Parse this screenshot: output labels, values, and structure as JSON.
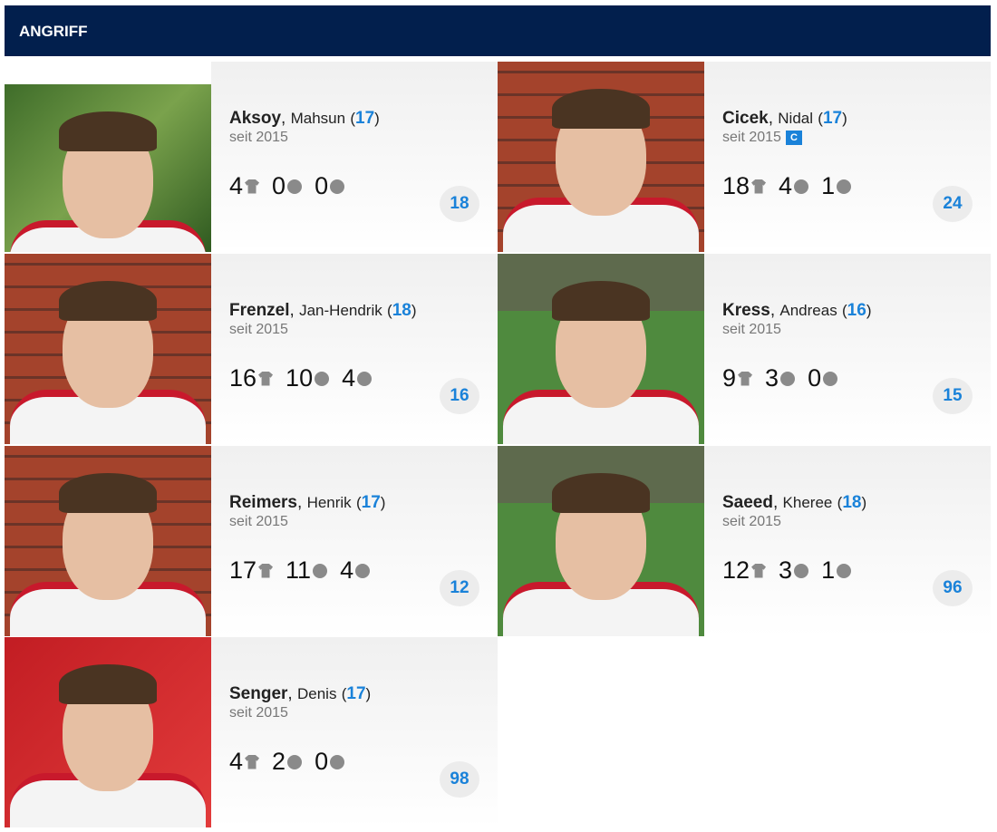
{
  "section": {
    "title": "ANGRIFF"
  },
  "players": [
    {
      "last": "Aksoy",
      "first": "Mahsun",
      "age": "17",
      "since": "seit 2015",
      "captain": "",
      "games": "4",
      "goals": "0",
      "assists": "0",
      "number": "18"
    },
    {
      "last": "Cicek",
      "first": "Nidal",
      "age": "17",
      "since": "seit 2015",
      "captain": "C",
      "games": "18",
      "goals": "4",
      "assists": "1",
      "number": "24"
    },
    {
      "last": "Frenzel",
      "first": "Jan-Hendrik",
      "age": "18",
      "since": "seit 2015",
      "captain": "",
      "games": "16",
      "goals": "10",
      "assists": "4",
      "number": "16"
    },
    {
      "last": "Kress",
      "first": "Andreas",
      "age": "16",
      "since": "seit 2015",
      "captain": "",
      "games": "9",
      "goals": "3",
      "assists": "0",
      "number": "15"
    },
    {
      "last": "Reimers",
      "first": "Henrik",
      "age": "17",
      "since": "seit 2015",
      "captain": "",
      "games": "17",
      "goals": "11",
      "assists": "4",
      "number": "12"
    },
    {
      "last": "Saeed",
      "first": "Kheree",
      "age": "18",
      "since": "seit 2015",
      "captain": "",
      "games": "12",
      "goals": "3",
      "assists": "1",
      "number": "96"
    },
    {
      "last": "Senger",
      "first": "Denis",
      "age": "17",
      "since": "seit 2015",
      "captain": "",
      "games": "4",
      "goals": "2",
      "assists": "0",
      "number": "98"
    }
  ],
  "icons": {
    "games": "shirt-icon",
    "goals": "ball-icon",
    "assists": "assist-icon"
  },
  "colors": {
    "header": "#021f4d",
    "accent": "#1a82d9"
  }
}
